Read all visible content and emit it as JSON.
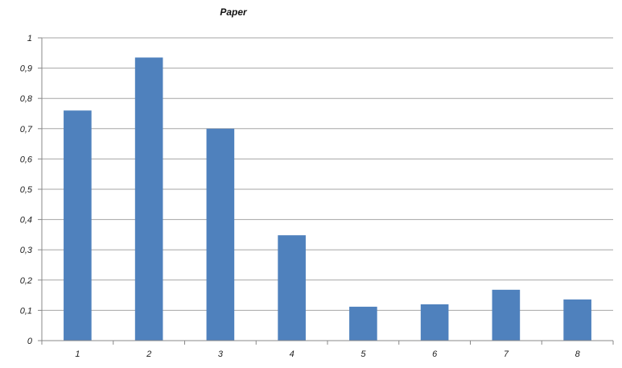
{
  "chart_data": {
    "type": "bar",
    "title": "Paper",
    "xlabel": "",
    "ylabel": "",
    "categories": [
      "1",
      "2",
      "3",
      "4",
      "5",
      "6",
      "7",
      "8"
    ],
    "values": [
      0.76,
      0.935,
      0.7,
      0.348,
      0.112,
      0.12,
      0.168,
      0.136
    ],
    "ylim": [
      0,
      1
    ],
    "yticks": [
      "0",
      "0,1",
      "0,2",
      "0,3",
      "0,4",
      "0,5",
      "0,6",
      "0,7",
      "0,8",
      "0,9",
      "1"
    ],
    "grid": true,
    "legend": "none",
    "bar_color": "#4F81BD"
  }
}
